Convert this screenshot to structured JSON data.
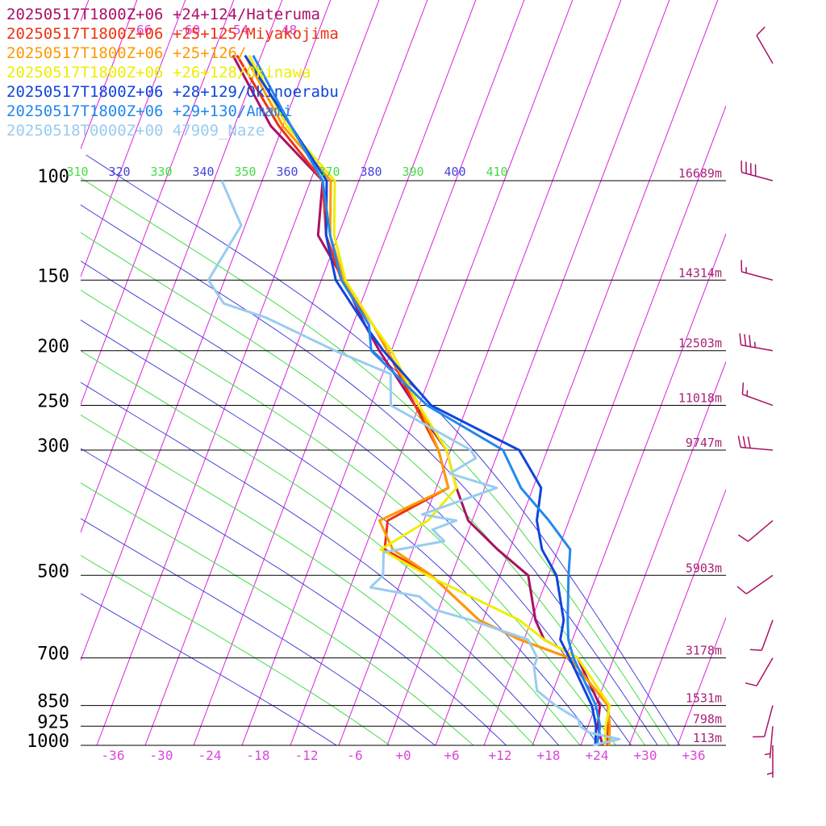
{
  "chart_data": {
    "type": "line",
    "chart_kind": "skew-t log-p sounding",
    "y_scale": "log-pressure",
    "pressure_range_hpa": [
      1000,
      100
    ],
    "temperature_range_c": [
      -36,
      36
    ],
    "temperature_ticks": [
      "-36",
      "-30",
      "-24",
      "-18",
      "-12",
      "-6",
      "+0",
      "+6",
      "+12",
      "+18",
      "+24",
      "+30",
      "+36"
    ],
    "pressure_levels": [
      {
        "p": 100,
        "label": "100",
        "height": "16689m"
      },
      {
        "p": 150,
        "label": "150",
        "height": "14314m"
      },
      {
        "p": 200,
        "label": "200",
        "height": "12503m"
      },
      {
        "p": 250,
        "label": "250",
        "height": "11018m"
      },
      {
        "p": 300,
        "label": "300",
        "height": "9747m"
      },
      {
        "p": 500,
        "label": "500",
        "height": "5903m"
      },
      {
        "p": 700,
        "label": "700",
        "height": "3178m"
      },
      {
        "p": 850,
        "label": "850",
        "height": "1531m"
      },
      {
        "p": 925,
        "label": "925",
        "height": "798m"
      },
      {
        "p": 1000,
        "label": "1000",
        "height": "113m"
      }
    ],
    "isotherm_top_labels": [
      "-66",
      "-60",
      "-54",
      "-48"
    ],
    "theta_e_labels": [
      {
        "value": "310",
        "color": "#44dd44"
      },
      {
        "value": "320",
        "color": "#4444dd"
      },
      {
        "value": "330",
        "color": "#44dd44"
      },
      {
        "value": "340",
        "color": "#4444dd"
      },
      {
        "value": "350",
        "color": "#44dd44"
      },
      {
        "value": "360",
        "color": "#4444dd"
      },
      {
        "value": "370",
        "color": "#44dd44"
      },
      {
        "value": "380",
        "color": "#4444dd"
      },
      {
        "value": "390",
        "color": "#44dd44"
      },
      {
        "value": "400",
        "color": "#4444dd"
      },
      {
        "value": "410",
        "color": "#44dd44"
      }
    ],
    "colors": {
      "isotherm": "#dd22dd",
      "pressure_line": "#000000",
      "theta_e_a": "#44dd44",
      "theta_e_b": "#4444dd",
      "tick_label": "#dd44dd",
      "height_label": "#aa2277",
      "wind_barb": "#aa1166"
    },
    "series": [
      {
        "name": "20250517T1800Z+06 +24+124/Hateruma",
        "color": "#aa1166",
        "points": [
          [
            1000,
            24.7
          ],
          [
            925,
            23.2
          ],
          [
            850,
            22.5
          ],
          [
            700,
            17.5
          ],
          [
            650,
            12.5
          ],
          [
            600,
            10.5
          ],
          [
            500,
            7.5
          ],
          [
            450,
            2.5
          ],
          [
            400,
            -2.5
          ],
          [
            350,
            -5.5
          ],
          [
            300,
            -8.5
          ],
          [
            250,
            -14.5
          ],
          [
            200,
            -21.5
          ],
          [
            180,
            -24.5
          ],
          [
            150,
            -29.2
          ],
          [
            125,
            -34.5
          ],
          [
            100,
            -36.5
          ],
          [
            80,
            -45.5
          ],
          [
            60,
            -53.5
          ]
        ]
      },
      {
        "name": "20250517T1800Z+06 +25+125/Miyakojima",
        "color": "#ee3311",
        "points": [
          [
            1000,
            25.2
          ],
          [
            925,
            24.5
          ],
          [
            850,
            23.5
          ],
          [
            700,
            16.5
          ],
          [
            650,
            9.5
          ],
          [
            600,
            3.5
          ],
          [
            500,
            -4.5
          ],
          [
            450,
            -11.5
          ],
          [
            400,
            -12.5
          ],
          [
            350,
            -6.5
          ],
          [
            300,
            -9.5
          ],
          [
            250,
            -14.5
          ],
          [
            200,
            -20.5
          ],
          [
            180,
            -23.5
          ],
          [
            150,
            -29.5
          ],
          [
            125,
            -33.5
          ],
          [
            100,
            -36.5
          ],
          [
            80,
            -44.5
          ],
          [
            60,
            -53.0
          ]
        ]
      },
      {
        "name": "20250517T1800Z+06 +25+126/",
        "color": "#ff9900",
        "points": [
          [
            1000,
            25.5
          ],
          [
            925,
            24.7
          ],
          [
            850,
            23.5
          ],
          [
            700,
            16.5
          ],
          [
            650,
            9.5
          ],
          [
            600,
            3.5
          ],
          [
            500,
            -4.5
          ],
          [
            450,
            -10.5
          ],
          [
            400,
            -13.5
          ],
          [
            350,
            -6.5
          ],
          [
            300,
            -9.5
          ],
          [
            250,
            -14.0
          ],
          [
            200,
            -20.5
          ],
          [
            180,
            -23.5
          ],
          [
            150,
            -29.2
          ],
          [
            125,
            -33.0
          ],
          [
            100,
            -35.5
          ],
          [
            80,
            -44.0
          ],
          [
            60,
            -52.0
          ]
        ]
      },
      {
        "name": "20250517T1800Z+06 +26+128/Okinawa",
        "color": "#eeee00",
        "points": [
          [
            1000,
            25.0
          ],
          [
            925,
            24.2
          ],
          [
            850,
            23.7
          ],
          [
            700,
            17.5
          ],
          [
            650,
            12.5
          ],
          [
            600,
            8.5
          ],
          [
            500,
            -5.0
          ],
          [
            450,
            -12.0
          ],
          [
            400,
            -7.5
          ],
          [
            350,
            -5.5
          ],
          [
            300,
            -8.5
          ],
          [
            250,
            -14.0
          ],
          [
            200,
            -20.0
          ],
          [
            180,
            -23.5
          ],
          [
            150,
            -29.0
          ],
          [
            125,
            -32.5
          ],
          [
            100,
            -35.0
          ],
          [
            80,
            -43.5
          ],
          [
            60,
            -51.5
          ]
        ]
      },
      {
        "name": "20250517T1800Z+06 +28+129/Okinoerabu",
        "color": "#1144dd",
        "points": [
          [
            1000,
            23.8
          ],
          [
            925,
            23.0
          ],
          [
            850,
            21.5
          ],
          [
            700,
            16.5
          ],
          [
            650,
            14.5
          ],
          [
            600,
            14.0
          ],
          [
            500,
            11.0
          ],
          [
            450,
            8.0
          ],
          [
            400,
            6.0
          ],
          [
            350,
            5.0
          ],
          [
            300,
            0.5
          ],
          [
            250,
            -12.5
          ],
          [
            200,
            -21.0
          ],
          [
            180,
            -24.5
          ],
          [
            150,
            -30.2
          ],
          [
            125,
            -33.5
          ],
          [
            100,
            -36.0
          ],
          [
            80,
            -43.0
          ],
          [
            60,
            -52.0
          ]
        ]
      },
      {
        "name": "20250517T1800Z+06 +29+130/Amami",
        "color": "#2288ee",
        "points": [
          [
            1000,
            24.0
          ],
          [
            925,
            23.5
          ],
          [
            850,
            22.0
          ],
          [
            700,
            17.0
          ],
          [
            650,
            15.5
          ],
          [
            600,
            14.5
          ],
          [
            500,
            12.5
          ],
          [
            450,
            11.5
          ],
          [
            400,
            7.5
          ],
          [
            350,
            2.5
          ],
          [
            300,
            -1.5
          ],
          [
            250,
            -13.0
          ],
          [
            200,
            -22.5
          ],
          [
            180,
            -24.0
          ],
          [
            150,
            -29.5
          ],
          [
            125,
            -33.0
          ],
          [
            100,
            -36.5
          ],
          [
            80,
            -43.0
          ],
          [
            60,
            -51.0
          ]
        ]
      },
      {
        "name": "20250518T0000Z+00 47909_Naze",
        "color": "#99ccf0",
        "points": [
          [
            1000,
            23.5
          ],
          [
            975,
            26.5
          ],
          [
            950,
            22.5
          ],
          [
            925,
            21.0
          ],
          [
            900,
            20.5
          ],
          [
            850,
            17.0
          ],
          [
            800,
            14.0
          ],
          [
            725,
            12.5
          ],
          [
            700,
            12.5
          ],
          [
            650,
            10.5
          ],
          [
            600,
            2.5
          ],
          [
            575,
            -2.5
          ],
          [
            545,
            -5.0
          ],
          [
            525,
            -11.5
          ],
          [
            500,
            -10.5
          ],
          [
            455,
            -11.5
          ],
          [
            435,
            -4.5
          ],
          [
            415,
            -6.5
          ],
          [
            400,
            -4.0
          ],
          [
            390,
            -8.5
          ],
          [
            350,
            -0.5
          ],
          [
            330,
            -7.0
          ],
          [
            310,
            -4.5
          ],
          [
            300,
            -5.5
          ],
          [
            250,
            -17.5
          ],
          [
            220,
            -19.0
          ],
          [
            200,
            -27.0
          ],
          [
            175,
            -37.0
          ],
          [
            165,
            -43.0
          ],
          [
            150,
            -46.0
          ],
          [
            120,
            -44.5
          ],
          [
            100,
            -49.0
          ]
        ]
      }
    ],
    "wind_barbs": [
      {
        "p": 40,
        "dir": 300,
        "kt": 10
      },
      {
        "p": 62,
        "dir": 330,
        "kt": 10
      },
      {
        "p": 100,
        "dir": 285,
        "kt": 40
      },
      {
        "p": 150,
        "dir": 285,
        "kt": 15
      },
      {
        "p": 200,
        "dir": 280,
        "kt": 35
      },
      {
        "p": 250,
        "dir": 290,
        "kt": 15
      },
      {
        "p": 300,
        "dir": 275,
        "kt": 30
      },
      {
        "p": 400,
        "dir": 230,
        "kt": 10
      },
      {
        "p": 500,
        "dir": 235,
        "kt": 10
      },
      {
        "p": 600,
        "dir": 200,
        "kt": 10
      },
      {
        "p": 700,
        "dir": 210,
        "kt": 10
      },
      {
        "p": 850,
        "dir": 195,
        "kt": 10
      },
      {
        "p": 925,
        "dir": 185,
        "kt": 5
      },
      {
        "p": 1000,
        "dir": 180,
        "kt": 5
      }
    ]
  }
}
